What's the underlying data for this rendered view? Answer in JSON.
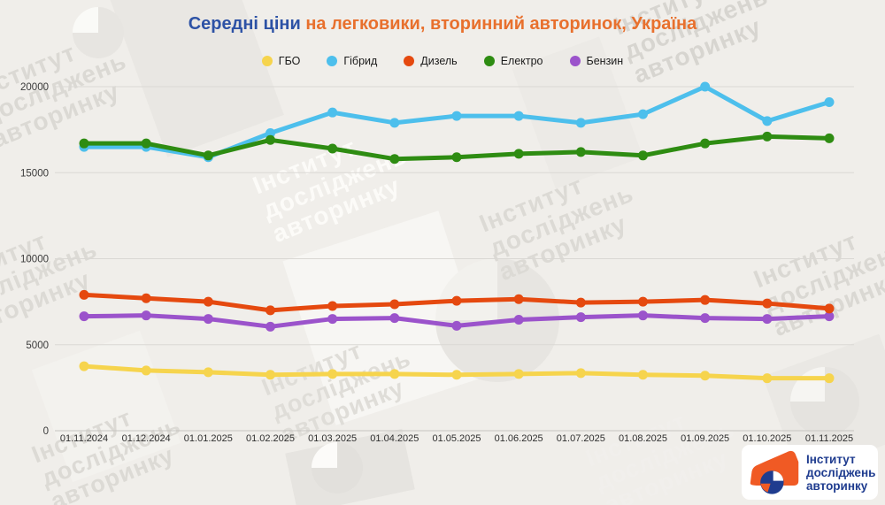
{
  "title": {
    "part1": "Середні ціни",
    "part2": " на легковики, вторинний авторинок, Україна",
    "part1_color": "#2d52a5",
    "part2_color": "#e8702d"
  },
  "chart_data": {
    "type": "line",
    "title": "Середні ціни на легковики, вторинний авторинок, Україна",
    "categories": [
      "01.11.2024",
      "01.12.2024",
      "01.01.2025",
      "01.02.2025",
      "01.03.2025",
      "01.04.2025",
      "01.05.2025",
      "01.06.2025",
      "01.07.2025",
      "01.08.2025",
      "01.09.2025",
      "01.10.2025",
      "01.11.2025"
    ],
    "series": [
      {
        "name": "ГБО",
        "color": "#f6d44d",
        "values": [
          3750,
          3500,
          3400,
          3250,
          3300,
          3300,
          3250,
          3300,
          3350,
          3250,
          3200,
          3050,
          3050
        ]
      },
      {
        "name": "Гібрид",
        "color": "#4dbfec",
        "values": [
          16500,
          16500,
          15900,
          17300,
          18500,
          17900,
          18300,
          18300,
          17900,
          18400,
          20000,
          18000,
          19100
        ]
      },
      {
        "name": "Дизель",
        "color": "#e5490f",
        "values": [
          7900,
          7700,
          7500,
          7000,
          7250,
          7350,
          7550,
          7650,
          7450,
          7500,
          7600,
          7400,
          7100
        ]
      },
      {
        "name": "Електро",
        "color": "#2e8c12",
        "values": [
          16700,
          16700,
          16000,
          16900,
          16400,
          15800,
          15900,
          16100,
          16200,
          16000,
          16700,
          17100,
          17000
        ]
      },
      {
        "name": "Бензин",
        "color": "#9b53cb",
        "values": [
          6650,
          6700,
          6500,
          6050,
          6500,
          6550,
          6100,
          6450,
          6600,
          6700,
          6550,
          6500,
          6650
        ]
      }
    ],
    "xlabel": "",
    "ylabel": "",
    "ylim": [
      0,
      20000
    ],
    "yticks": [
      0,
      5000,
      10000,
      15000,
      20000
    ],
    "grid": true,
    "legend_position": "top"
  },
  "axis": {
    "label_color": "#3a3a3a",
    "grid_color": "#dad8d4",
    "zero_line_color": "#c6c4c0"
  },
  "watermark": {
    "lines": [
      "Інститут",
      "досліджень",
      "авторинку"
    ]
  },
  "logo": {
    "lines": [
      "Інститут",
      "досліджень",
      "авторинку"
    ],
    "text_color": "#1f3c8f",
    "car_color": "#f05a24"
  }
}
